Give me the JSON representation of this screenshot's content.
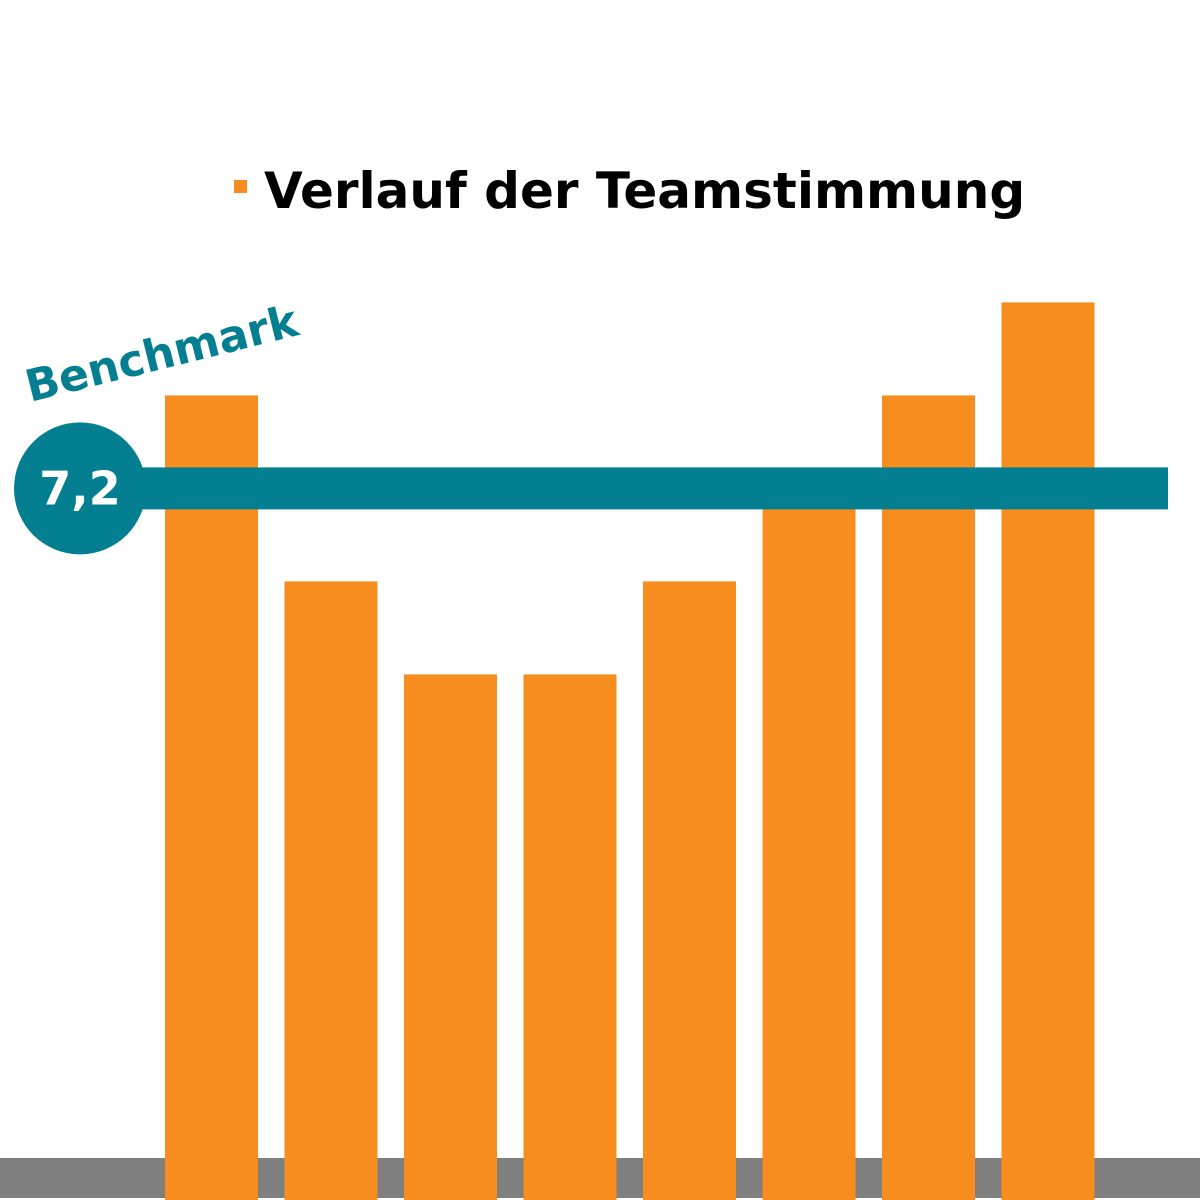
{
  "chart_data": {
    "type": "bar",
    "legend": [
      "Verlauf der Teamstimmung"
    ],
    "legend_position": "top",
    "series": [
      {
        "name": "Verlauf der Teamstimmung",
        "values": [
          8.2,
          6.2,
          5.2,
          5.2,
          6.2,
          7.2,
          8.2,
          9.2
        ]
      }
    ],
    "benchmark": {
      "label": "Benchmark",
      "value": 7.2,
      "value_text": "7,2"
    },
    "ylim": [
      0,
      11.6
    ],
    "grid": false,
    "colors": {
      "bars": "#f78d1e",
      "benchmark": "#037f91",
      "baseline": "#7f7f7f",
      "legend_text": "#000000"
    }
  }
}
